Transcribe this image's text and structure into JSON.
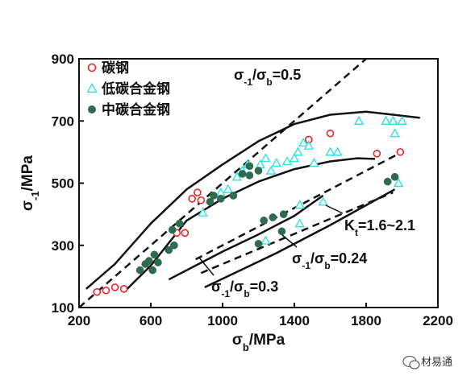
{
  "chart_data": {
    "type": "scatter",
    "xlabel": "σb/MPa",
    "ylabel": "σ-1/MPa",
    "xlim": [
      200,
      2200
    ],
    "ylim": [
      100,
      900
    ],
    "xticks": [
      200,
      600,
      1000,
      1400,
      1800,
      2200
    ],
    "yticks": [
      100,
      300,
      500,
      700,
      900
    ],
    "legend_position": "top-left",
    "series": [
      {
        "name": "碳钢",
        "marker": "open-circle",
        "color": "#e8262c",
        "points": [
          [
            300,
            150
          ],
          [
            350,
            155
          ],
          [
            400,
            165
          ],
          [
            450,
            160
          ],
          [
            745,
            340
          ],
          [
            790,
            340
          ],
          [
            830,
            450
          ],
          [
            860,
            470
          ],
          [
            880,
            445
          ],
          [
            1480,
            640
          ],
          [
            1600,
            660
          ],
          [
            1860,
            595
          ],
          [
            1990,
            600
          ]
        ]
      },
      {
        "name": "低碳合金钢",
        "marker": "open-triangle",
        "color": "#35e0e0",
        "points": [
          [
            890,
            405
          ],
          [
            990,
            470
          ],
          [
            1030,
            480
          ],
          [
            1080,
            520
          ],
          [
            1110,
            540
          ],
          [
            1140,
            560
          ],
          [
            1210,
            560
          ],
          [
            1240,
            580
          ],
          [
            1270,
            540
          ],
          [
            1300,
            565
          ],
          [
            1360,
            570
          ],
          [
            1400,
            580
          ],
          [
            1420,
            600
          ],
          [
            1450,
            630
          ],
          [
            1480,
            620
          ],
          [
            1510,
            565
          ],
          [
            1240,
            315
          ],
          [
            1430,
            430
          ],
          [
            1430,
            370
          ],
          [
            1560,
            440
          ],
          [
            1600,
            600
          ],
          [
            1640,
            600
          ],
          [
            1760,
            700
          ],
          [
            1910,
            700
          ],
          [
            1950,
            700
          ],
          [
            1960,
            660
          ],
          [
            2000,
            700
          ],
          [
            1980,
            500
          ]
        ]
      },
      {
        "name": "中碳合金钢",
        "marker": "filled-circle",
        "color": "#2f6b4f",
        "points": [
          [
            540,
            220
          ],
          [
            570,
            240
          ],
          [
            590,
            250
          ],
          [
            610,
            220
          ],
          [
            620,
            270
          ],
          [
            640,
            245
          ],
          [
            700,
            285
          ],
          [
            720,
            350
          ],
          [
            730,
            300
          ],
          [
            760,
            370
          ],
          [
            930,
            440
          ],
          [
            950,
            460
          ],
          [
            990,
            450
          ],
          [
            1060,
            460
          ],
          [
            1110,
            530
          ],
          [
            1150,
            525
          ],
          [
            1150,
            555
          ],
          [
            1200,
            540
          ],
          [
            1230,
            380
          ],
          [
            1280,
            390
          ],
          [
            1340,
            400
          ],
          [
            1200,
            305
          ],
          [
            1330,
            345
          ],
          [
            1920,
            505
          ],
          [
            1960,
            520
          ]
        ]
      }
    ],
    "reference_lines": [
      {
        "label_parts": [
          "σ",
          "-1",
          "/σ",
          "b",
          "=0.5"
        ],
        "style": "dashed",
        "points": [
          [
            200,
            100
          ],
          [
            1800,
            900
          ]
        ]
      },
      {
        "label_parts": [
          "σ",
          "-1",
          "/σ",
          "b",
          "=0.3"
        ],
        "style": "dashed",
        "points": [
          [
            850,
            255
          ],
          [
            2000,
            600
          ]
        ]
      },
      {
        "label_parts": [
          "σ",
          "-1",
          "/σ",
          "b",
          "=0.24"
        ],
        "style": "dashed",
        "points": [
          [
            880,
            211
          ],
          [
            1950,
            470
          ]
        ]
      }
    ],
    "envelope_lines": [
      {
        "style": "solid",
        "points": [
          [
            240,
            160
          ],
          [
            400,
            240
          ],
          [
            600,
            370
          ],
          [
            800,
            480
          ],
          [
            1000,
            560
          ],
          [
            1200,
            635
          ],
          [
            1400,
            690
          ],
          [
            1600,
            720
          ],
          [
            1800,
            730
          ],
          [
            1950,
            720
          ],
          [
            2100,
            710
          ]
        ]
      },
      {
        "style": "solid",
        "points": [
          [
            460,
            155
          ],
          [
            600,
            235
          ],
          [
            800,
            380
          ],
          [
            1000,
            450
          ],
          [
            1200,
            505
          ],
          [
            1400,
            545
          ],
          [
            1600,
            570
          ],
          [
            1750,
            580
          ],
          [
            1850,
            578
          ]
        ]
      },
      {
        "style": "solid",
        "points": [
          [
            700,
            190
          ],
          [
            1000,
            280
          ],
          [
            1200,
            335
          ],
          [
            1400,
            395
          ],
          [
            1560,
            460
          ]
        ]
      },
      {
        "style": "solid",
        "points": [
          [
            900,
            165
          ],
          [
            1300,
            275
          ],
          [
            1600,
            365
          ],
          [
            1960,
            480
          ]
        ]
      }
    ],
    "annotations": [
      {
        "text_parts": [
          "K",
          "t",
          "=1.6~2.1"
        ],
        "x": 1650,
        "y": 365
      }
    ]
  },
  "watermark": {
    "text": "材易通"
  }
}
